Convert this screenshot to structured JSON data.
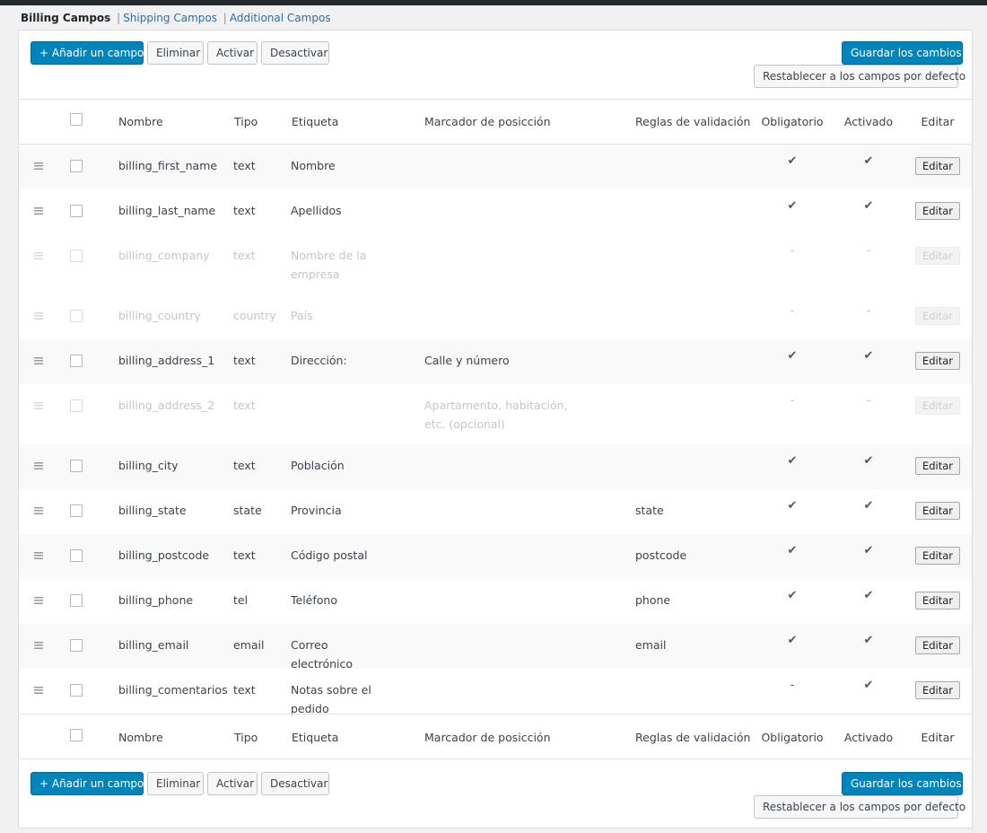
{
  "subnav": {
    "current": "Billing Campos",
    "links": [
      "Shipping Campos",
      "Additional Campos"
    ],
    "separator": "|"
  },
  "toolbar": {
    "add_label": "+ Añadir un campo",
    "delete_label": "Eliminar",
    "activate_label": "Activar",
    "deactivate_label": "Desactivar",
    "save_label": "Guardar los cambios",
    "reset_label": "Restablecer a los campos por defecto"
  },
  "columns": {
    "name": "Nombre",
    "type": "Tipo",
    "label": "Etiqueta",
    "placeholder": "Marcador de posicción",
    "validation": "Reglas de validación",
    "required": "Obligatorio",
    "enabled": "Activado",
    "edit": "Editar"
  },
  "rows": [
    {
      "name": "billing_first_name",
      "type": "text",
      "label": "Nombre",
      "placeholder": "",
      "validation": "",
      "required": "✔",
      "enabled": "✔",
      "edit": "Editar"
    },
    {
      "name": "billing_last_name",
      "type": "text",
      "label": "Apellidos",
      "placeholder": "",
      "validation": "",
      "required": "✔",
      "enabled": "✔",
      "edit": "Editar"
    },
    {
      "name": "billing_company",
      "type": "text",
      "label": "Nombre de la empresa",
      "placeholder": "",
      "validation": "",
      "required": "-",
      "enabled": "-",
      "edit": "Editar"
    },
    {
      "name": "billing_country",
      "type": "country",
      "label": "País",
      "placeholder": "",
      "validation": "",
      "required": "-",
      "enabled": "-",
      "edit": "Editar"
    },
    {
      "name": "billing_address_1",
      "type": "text",
      "label": "Dirección:",
      "placeholder": "Calle y número",
      "validation": "",
      "required": "✔",
      "enabled": "✔",
      "edit": "Editar"
    },
    {
      "name": "billing_address_2",
      "type": "text",
      "label": "",
      "placeholder": "Apartamento, habitación, etc. (opcional)",
      "validation": "",
      "required": "-",
      "enabled": "-",
      "edit": "Editar"
    },
    {
      "name": "billing_city",
      "type": "text",
      "label": "Población",
      "placeholder": "",
      "validation": "",
      "required": "✔",
      "enabled": "✔",
      "edit": "Editar"
    },
    {
      "name": "billing_state",
      "type": "state",
      "label": "Provincia",
      "placeholder": "",
      "validation": "state",
      "required": "✔",
      "enabled": "✔",
      "edit": "Editar"
    },
    {
      "name": "billing_postcode",
      "type": "text",
      "label": "Código postal",
      "placeholder": "",
      "validation": "postcode",
      "required": "✔",
      "enabled": "✔",
      "edit": "Editar"
    },
    {
      "name": "billing_phone",
      "type": "tel",
      "label": "Teléfono",
      "placeholder": "",
      "validation": "phone",
      "required": "✔",
      "enabled": "✔",
      "edit": "Editar"
    },
    {
      "name": "billing_email",
      "type": "email",
      "label": "Correo electrónico",
      "placeholder": "",
      "validation": "email",
      "required": "✔",
      "enabled": "✔",
      "edit": "Editar"
    },
    {
      "name": "billing_comentarios",
      "type": "text",
      "label": "Notas sobre el pedido",
      "placeholder": "",
      "validation": "",
      "required": "-",
      "enabled": "✔",
      "edit": "Editar"
    }
  ]
}
